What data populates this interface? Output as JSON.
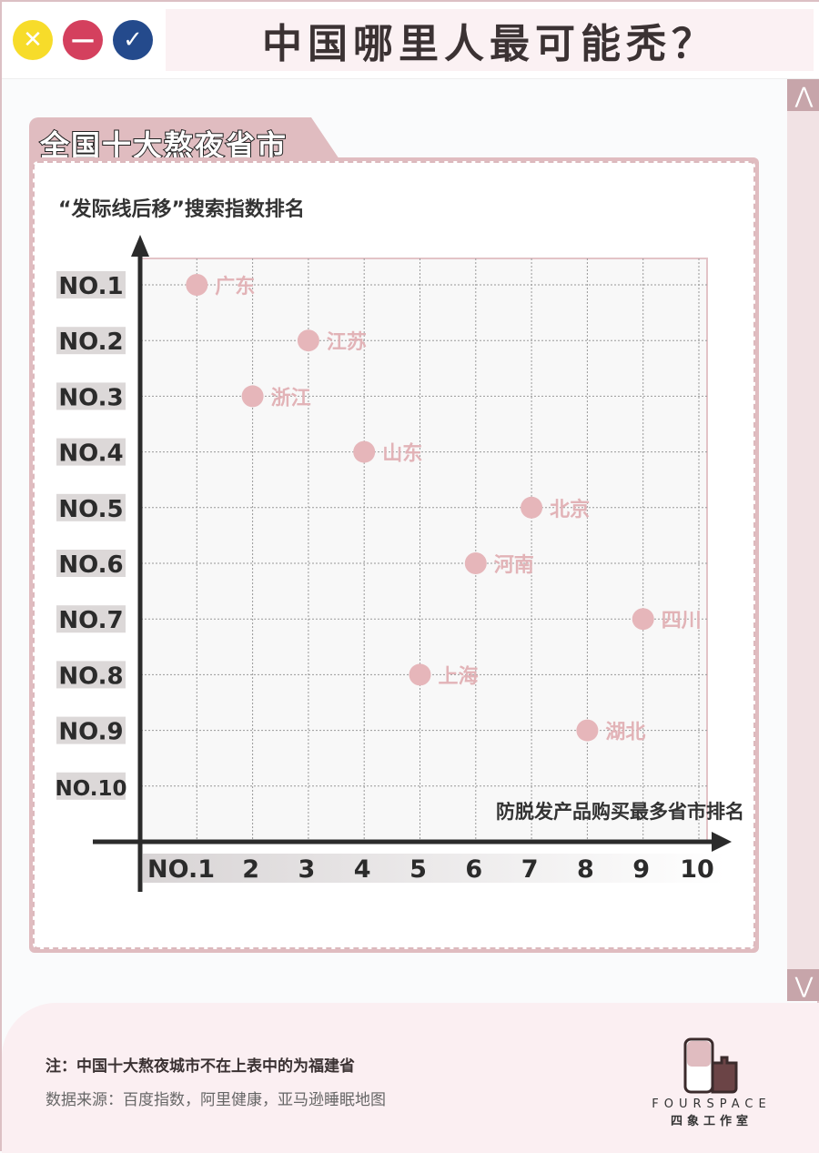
{
  "window": {
    "title": "中国哪里人最可能秃？",
    "buttons": [
      {
        "name": "close",
        "color": "#f7dc2a",
        "glyph": "✕"
      },
      {
        "name": "minimize",
        "color": "#d4405e",
        "glyph": "—"
      },
      {
        "name": "confirm",
        "color": "#244a8c",
        "glyph": "✓"
      }
    ]
  },
  "panel": {
    "tab_label": "全国十大熬夜省市"
  },
  "colors": {
    "dot": "#e6b6ba",
    "label": "#e2b3b7",
    "axis": "#2b2b2b",
    "accent": "#e0bcc0"
  },
  "chart_data": {
    "type": "scatter",
    "ylabel": "“发际线后移”搜索指数排名",
    "xlabel": "防脱发产品购买最多省市排名",
    "x_ticks": [
      "NO.1",
      "2",
      "3",
      "4",
      "5",
      "6",
      "7",
      "8",
      "9",
      "10"
    ],
    "y_ticks": [
      "NO.1",
      "NO.2",
      "NO.3",
      "NO.4",
      "NO.5",
      "NO.6",
      "NO.7",
      "NO.8",
      "NO.9",
      "NO.10"
    ],
    "xlim": [
      0,
      10
    ],
    "ylim": [
      0,
      10
    ],
    "y_inverted": true,
    "grid": true,
    "points": [
      {
        "label": "广东",
        "x": 1,
        "y": 1
      },
      {
        "label": "江苏",
        "x": 3,
        "y": 2
      },
      {
        "label": "浙江",
        "x": 2,
        "y": 3
      },
      {
        "label": "山东",
        "x": 4,
        "y": 4
      },
      {
        "label": "北京",
        "x": 7,
        "y": 5
      },
      {
        "label": "河南",
        "x": 6,
        "y": 6
      },
      {
        "label": "四川",
        "x": 9,
        "y": 7
      },
      {
        "label": "上海",
        "x": 5,
        "y": 8
      },
      {
        "label": "湖北",
        "x": 8,
        "y": 9
      }
    ]
  },
  "footer": {
    "note": "注：中国十大熬夜城市不在上表中的为福建省",
    "source": "数据来源：百度指数，阿里健康，亚马逊睡眠地图",
    "logo_en": "FOURSPACE",
    "logo_cn": "四象工作室"
  }
}
